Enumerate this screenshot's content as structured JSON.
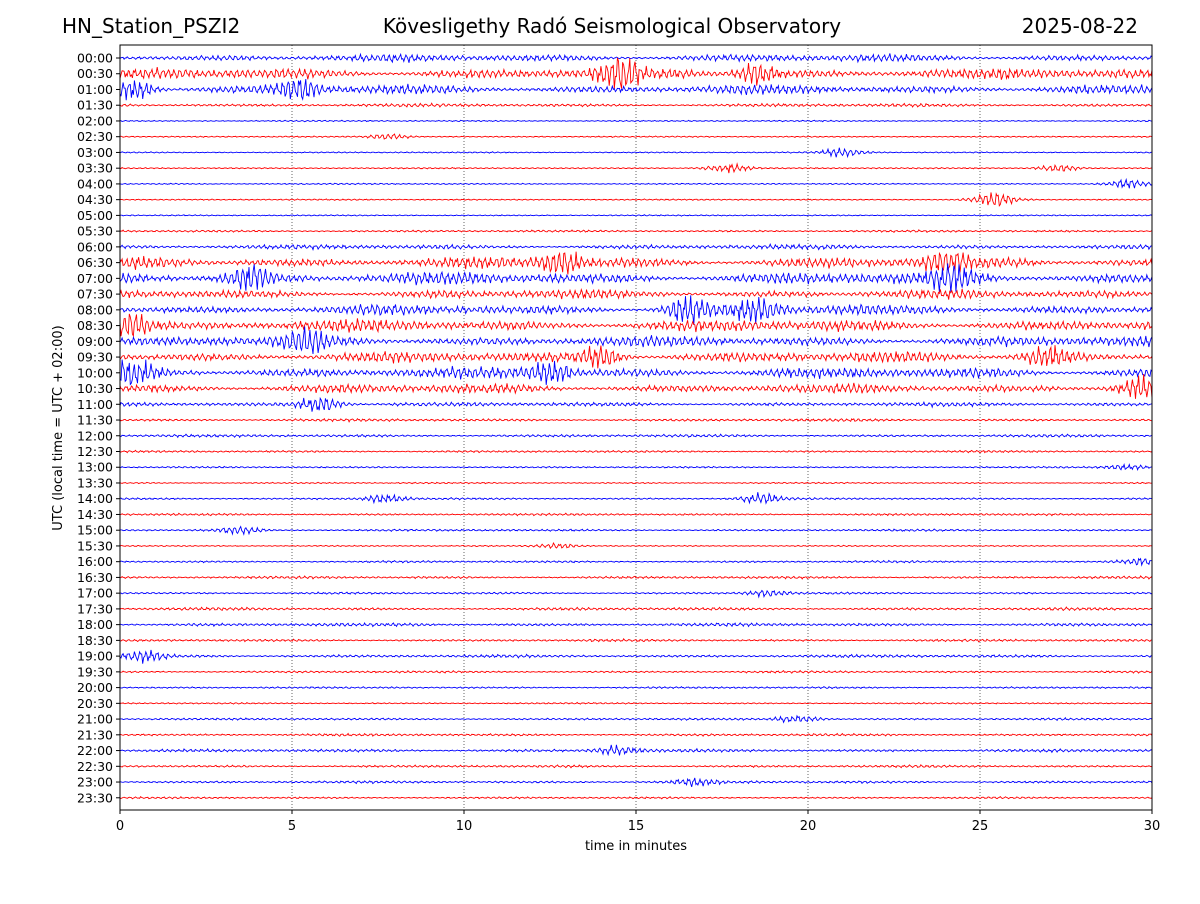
{
  "header": {
    "station": "HN_Station_PSZI2",
    "title": "Kövesligethy Radó Seismological Observatory",
    "date": "2025-08-22"
  },
  "chart_data": {
    "type": "line",
    "title": "Kövesligethy Radó Seismological Observatory",
    "xlabel": "time in minutes",
    "ylabel": "UTC (local time = UTC + 02:00)",
    "xlim": [
      0,
      30
    ],
    "x_ticks": [
      "0",
      "5",
      "10",
      "15",
      "20",
      "25",
      "30"
    ],
    "x_tick_values": [
      0,
      5,
      10,
      15,
      20,
      25,
      30
    ],
    "grid": "vertical dotted at x ticks",
    "colors": [
      "#0000ff",
      "#ff0000"
    ],
    "rows": [
      {
        "label": "00:00",
        "amp": 0.6,
        "events": []
      },
      {
        "label": "00:30",
        "amp": 0.9,
        "events": [
          {
            "t": 14.5,
            "a": 1.0
          },
          {
            "t": 18.5,
            "a": 0.8
          }
        ]
      },
      {
        "label": "01:00",
        "amp": 0.75,
        "events": [
          {
            "t": 0.4,
            "a": 0.9
          },
          {
            "t": 5.2,
            "a": 0.8
          }
        ]
      },
      {
        "label": "01:30",
        "amp": 0.22,
        "events": []
      },
      {
        "label": "02:00",
        "amp": 0.05,
        "events": []
      },
      {
        "label": "02:30",
        "amp": 0.05,
        "events": [
          {
            "t": 7.8,
            "a": 0.25
          }
        ]
      },
      {
        "label": "03:00",
        "amp": 0.05,
        "events": [
          {
            "t": 21.0,
            "a": 0.35
          }
        ]
      },
      {
        "label": "03:30",
        "amp": 0.05,
        "events": [
          {
            "t": 17.7,
            "a": 0.35
          },
          {
            "t": 27.3,
            "a": 0.3
          }
        ]
      },
      {
        "label": "04:00",
        "amp": 0.05,
        "events": [
          {
            "t": 29.3,
            "a": 0.35
          }
        ]
      },
      {
        "label": "04:30",
        "amp": 0.05,
        "events": [
          {
            "t": 25.4,
            "a": 0.6
          }
        ]
      },
      {
        "label": "05:00",
        "amp": 0.04,
        "events": []
      },
      {
        "label": "05:30",
        "amp": 0.12,
        "events": []
      },
      {
        "label": "06:00",
        "amp": 0.35,
        "events": []
      },
      {
        "label": "06:30",
        "amp": 0.9,
        "events": [
          {
            "t": 12.8,
            "a": 1.0
          },
          {
            "t": 24.0,
            "a": 0.8
          }
        ]
      },
      {
        "label": "07:00",
        "amp": 1.0,
        "events": [
          {
            "t": 3.8,
            "a": 1.0
          },
          {
            "t": 24.2,
            "a": 0.9
          }
        ]
      },
      {
        "label": "07:30",
        "amp": 0.7,
        "events": []
      },
      {
        "label": "08:00",
        "amp": 0.85,
        "events": [
          {
            "t": 16.5,
            "a": 1.0
          },
          {
            "t": 18.5,
            "a": 0.9
          }
        ]
      },
      {
        "label": "08:30",
        "amp": 0.95,
        "events": [
          {
            "t": 0.3,
            "a": 1.0
          }
        ]
      },
      {
        "label": "09:00",
        "amp": 0.85,
        "events": [
          {
            "t": 5.4,
            "a": 0.8
          }
        ]
      },
      {
        "label": "09:30",
        "amp": 0.85,
        "events": [
          {
            "t": 14.0,
            "a": 0.9
          },
          {
            "t": 27.0,
            "a": 0.9
          }
        ]
      },
      {
        "label": "10:00",
        "amp": 0.9,
        "events": [
          {
            "t": 0.4,
            "a": 0.9
          },
          {
            "t": 12.5,
            "a": 0.8
          }
        ]
      },
      {
        "label": "10:30",
        "amp": 0.75,
        "events": [
          {
            "t": 29.7,
            "a": 0.9
          }
        ]
      },
      {
        "label": "11:00",
        "amp": 0.3,
        "events": [
          {
            "t": 5.8,
            "a": 0.7
          }
        ]
      },
      {
        "label": "11:30",
        "amp": 0.18,
        "events": []
      },
      {
        "label": "12:00",
        "amp": 0.18,
        "events": []
      },
      {
        "label": "12:30",
        "amp": 0.12,
        "events": []
      },
      {
        "label": "13:00",
        "amp": 0.08,
        "events": [
          {
            "t": 29.2,
            "a": 0.25
          }
        ]
      },
      {
        "label": "13:30",
        "amp": 0.05,
        "events": []
      },
      {
        "label": "14:00",
        "amp": 0.1,
        "events": [
          {
            "t": 7.7,
            "a": 0.35
          },
          {
            "t": 18.6,
            "a": 0.45
          }
        ]
      },
      {
        "label": "14:30",
        "amp": 0.12,
        "events": []
      },
      {
        "label": "15:00",
        "amp": 0.12,
        "events": [
          {
            "t": 3.5,
            "a": 0.3
          }
        ]
      },
      {
        "label": "15:30",
        "amp": 0.04,
        "events": [
          {
            "t": 12.7,
            "a": 0.2
          }
        ]
      },
      {
        "label": "16:00",
        "amp": 0.12,
        "events": [
          {
            "t": 29.6,
            "a": 0.3
          }
        ]
      },
      {
        "label": "16:30",
        "amp": 0.15,
        "events": []
      },
      {
        "label": "17:00",
        "amp": 0.12,
        "events": [
          {
            "t": 18.8,
            "a": 0.25
          }
        ]
      },
      {
        "label": "17:30",
        "amp": 0.18,
        "events": []
      },
      {
        "label": "18:00",
        "amp": 0.22,
        "events": []
      },
      {
        "label": "18:30",
        "amp": 0.15,
        "events": []
      },
      {
        "label": "19:00",
        "amp": 0.2,
        "events": [
          {
            "t": 0.7,
            "a": 0.45
          }
        ]
      },
      {
        "label": "19:30",
        "amp": 0.12,
        "events": []
      },
      {
        "label": "20:00",
        "amp": 0.1,
        "events": []
      },
      {
        "label": "20:30",
        "amp": 0.06,
        "events": []
      },
      {
        "label": "21:00",
        "amp": 0.12,
        "events": [
          {
            "t": 19.7,
            "a": 0.3
          }
        ]
      },
      {
        "label": "21:30",
        "amp": 0.15,
        "events": []
      },
      {
        "label": "22:00",
        "amp": 0.2,
        "events": [
          {
            "t": 14.5,
            "a": 0.4
          }
        ]
      },
      {
        "label": "22:30",
        "amp": 0.15,
        "events": []
      },
      {
        "label": "23:00",
        "amp": 0.15,
        "events": [
          {
            "t": 16.7,
            "a": 0.35
          }
        ]
      },
      {
        "label": "23:30",
        "amp": 0.1,
        "events": []
      }
    ]
  }
}
